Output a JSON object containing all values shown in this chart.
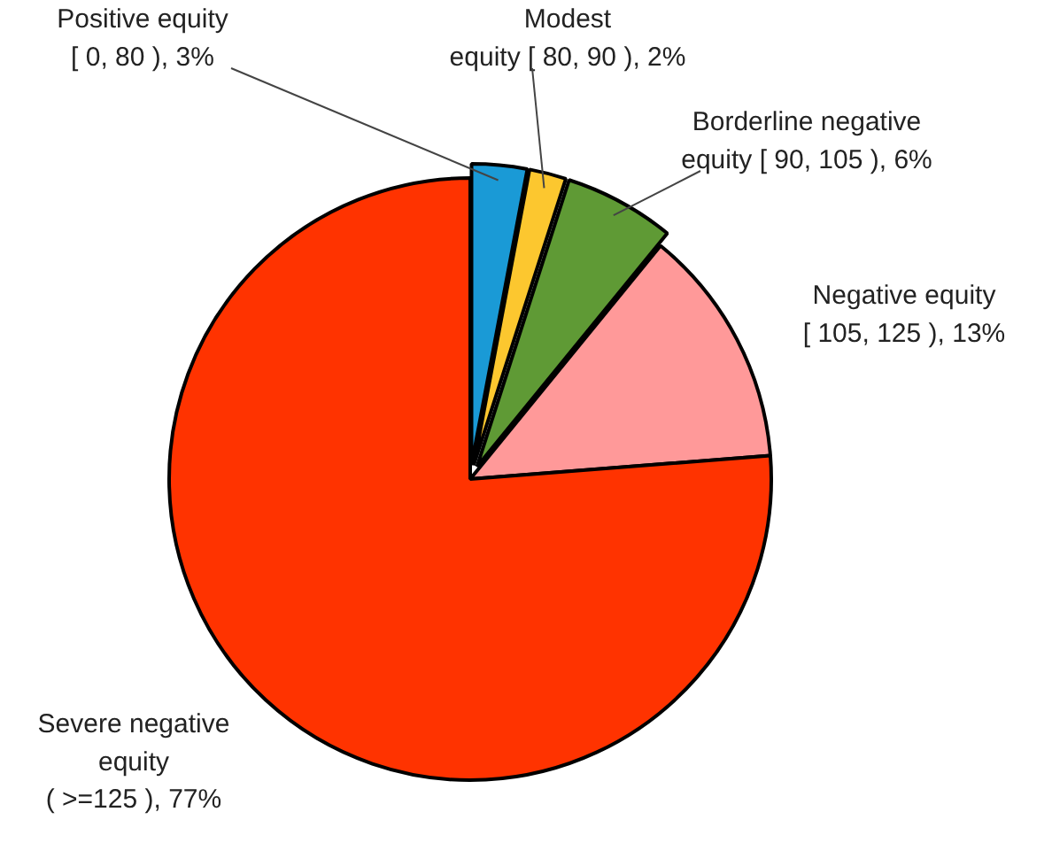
{
  "chart_data": {
    "type": "pie",
    "categories": [
      "Positive equity\n[ 0, 80 ), 3%",
      "Modest\nequity [ 80, 90 ), 2%",
      "Borderline negative\nequity [ 90, 105 ), 6%",
      "Negative equity\n[ 105, 125 ), 13%",
      "Severe negative\nequity\n( >=125 ), 77%"
    ],
    "values": [
      3,
      2,
      6,
      13,
      77
    ],
    "colors": [
      "#1a9ad6",
      "#fcc72f",
      "#5f9a35",
      "#ff9999",
      "#ff3300"
    ]
  }
}
